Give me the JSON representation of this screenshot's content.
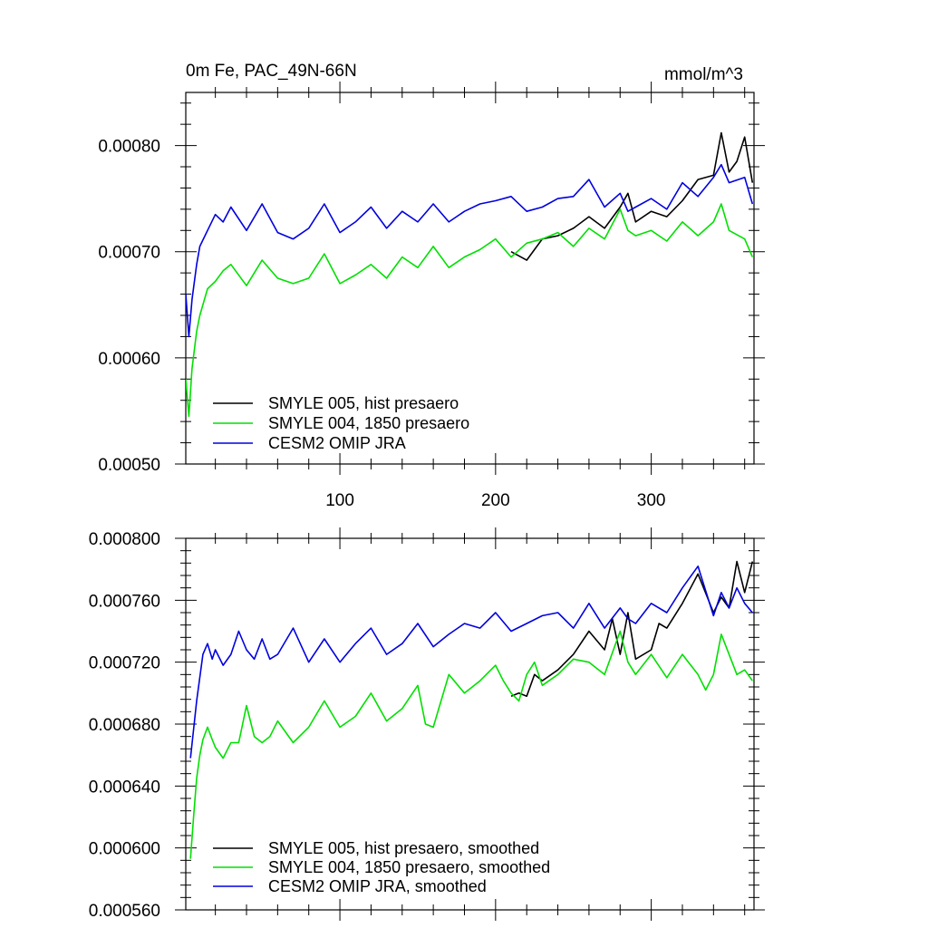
{
  "chart_data": [
    {
      "type": "line",
      "title": "0m Fe, PAC_49N-66N",
      "units": "mmol/m^3",
      "xlim": [
        1,
        366
      ],
      "ylim": [
        0.0005,
        0.00085
      ],
      "xticks": [
        100,
        200,
        300
      ],
      "xtick_labels": [
        "100",
        "200",
        "300"
      ],
      "yticks": [
        0.0005,
        0.0006,
        0.0007,
        0.0008
      ],
      "ytick_labels": [
        "0.00050",
        "0.00060",
        "0.00070",
        "0.00080"
      ],
      "legend": [
        "SMYLE 005, hist presaero",
        "SMYLE 004, 1850 presaero",
        "CESM2 OMIP JRA"
      ],
      "series": [
        {
          "name": "SMYLE 005, hist presaero",
          "color": "#000000",
          "x": [
            210,
            220,
            225,
            230,
            240,
            250,
            260,
            270,
            280,
            285,
            290,
            300,
            310,
            320,
            330,
            340,
            345,
            350,
            355,
            360,
            365
          ],
          "values": [
            0.0007,
            0.000692,
            0.000702,
            0.000712,
            0.000715,
            0.000722,
            0.000733,
            0.000722,
            0.000742,
            0.000755,
            0.000728,
            0.000738,
            0.000733,
            0.000748,
            0.000768,
            0.000772,
            0.000812,
            0.000775,
            0.000785,
            0.000808,
            0.000765
          ]
        },
        {
          "name": "SMYLE 004, 1850 presaero",
          "color": "#00e000",
          "x": [
            1,
            3,
            5,
            8,
            10,
            15,
            20,
            25,
            30,
            40,
            50,
            60,
            70,
            80,
            90,
            100,
            110,
            120,
            130,
            140,
            150,
            160,
            170,
            180,
            190,
            200,
            210,
            220,
            230,
            240,
            250,
            260,
            270,
            280,
            285,
            290,
            300,
            310,
            320,
            330,
            340,
            345,
            350,
            360,
            365
          ],
          "values": [
            0.00058,
            0.000545,
            0.00059,
            0.000625,
            0.00064,
            0.000665,
            0.000672,
            0.000682,
            0.000688,
            0.000668,
            0.000692,
            0.000675,
            0.00067,
            0.000675,
            0.000698,
            0.00067,
            0.000678,
            0.000688,
            0.000675,
            0.000695,
            0.000685,
            0.000705,
            0.000685,
            0.000695,
            0.000702,
            0.000712,
            0.000695,
            0.000708,
            0.000712,
            0.000718,
            0.000705,
            0.000722,
            0.000712,
            0.00074,
            0.00072,
            0.000715,
            0.00072,
            0.00071,
            0.000728,
            0.000715,
            0.000728,
            0.000745,
            0.00072,
            0.000712,
            0.000695
          ]
        },
        {
          "name": "CESM2 OMIP JRA",
          "color": "#0000e0",
          "x": [
            1,
            3,
            5,
            8,
            10,
            15,
            20,
            25,
            30,
            40,
            50,
            60,
            70,
            80,
            90,
            100,
            110,
            120,
            130,
            140,
            150,
            160,
            170,
            180,
            190,
            200,
            210,
            220,
            230,
            240,
            250,
            260,
            270,
            280,
            285,
            290,
            300,
            310,
            320,
            330,
            340,
            345,
            350,
            360,
            365
          ],
          "values": [
            0.00066,
            0.00062,
            0.000655,
            0.000688,
            0.000705,
            0.00072,
            0.000735,
            0.000728,
            0.000742,
            0.00072,
            0.000745,
            0.000718,
            0.000712,
            0.000722,
            0.000745,
            0.000718,
            0.000728,
            0.000742,
            0.000722,
            0.000738,
            0.000728,
            0.000745,
            0.000728,
            0.000738,
            0.000745,
            0.000748,
            0.000752,
            0.000738,
            0.000742,
            0.00075,
            0.000752,
            0.000768,
            0.000742,
            0.000755,
            0.000738,
            0.000742,
            0.00075,
            0.00074,
            0.000765,
            0.000752,
            0.00077,
            0.000782,
            0.000765,
            0.00077,
            0.000745
          ]
        }
      ]
    },
    {
      "type": "line",
      "title": "",
      "xlim": [
        1,
        366
      ],
      "ylim": [
        0.00056,
        0.0008
      ],
      "xticks": [
        100,
        200,
        300
      ],
      "yticks": [
        0.00056,
        0.0006,
        0.00064,
        0.00068,
        0.00072,
        0.00076,
        0.0008
      ],
      "ytick_labels": [
        "0.000560",
        "0.000600",
        "0.000640",
        "0.000680",
        "0.000720",
        "0.000760",
        "0.000800"
      ],
      "legend": [
        "SMYLE 005, hist presaero, smoothed",
        "SMYLE 004, 1850 presaero, smoothed",
        "CESM2 OMIP JRA, smoothed"
      ],
      "series": [
        {
          "name": "SMYLE 005, hist presaero, smoothed",
          "color": "#000000",
          "x": [
            210,
            215,
            220,
            225,
            230,
            240,
            250,
            260,
            270,
            275,
            280,
            285,
            290,
            300,
            305,
            310,
            320,
            330,
            340,
            345,
            350,
            355,
            360,
            365
          ],
          "values": [
            0.000698,
            0.0007,
            0.000698,
            0.000712,
            0.000708,
            0.000715,
            0.000725,
            0.00074,
            0.000728,
            0.000748,
            0.000725,
            0.000752,
            0.000722,
            0.000728,
            0.000745,
            0.000742,
            0.000758,
            0.000777,
            0.000752,
            0.000762,
            0.000755,
            0.000785,
            0.000765,
            0.000785
          ]
        },
        {
          "name": "SMYLE 004, 1850 presaero, smoothed",
          "color": "#00e000",
          "x": [
            4,
            6,
            8,
            10,
            12,
            15,
            18,
            20,
            25,
            30,
            35,
            40,
            45,
            50,
            55,
            60,
            70,
            80,
            90,
            100,
            110,
            120,
            130,
            140,
            150,
            155,
            160,
            170,
            180,
            190,
            200,
            205,
            210,
            215,
            220,
            225,
            230,
            240,
            250,
            260,
            270,
            280,
            285,
            290,
            300,
            310,
            320,
            330,
            335,
            340,
            345,
            350,
            355,
            360,
            365
          ],
          "values": [
            0.000593,
            0.00062,
            0.000645,
            0.00066,
            0.00067,
            0.000678,
            0.00067,
            0.000665,
            0.000658,
            0.000668,
            0.000668,
            0.000692,
            0.000672,
            0.000668,
            0.000672,
            0.000682,
            0.000668,
            0.000678,
            0.000695,
            0.000678,
            0.000685,
            0.0007,
            0.000682,
            0.00069,
            0.000705,
            0.00068,
            0.000678,
            0.000712,
            0.0007,
            0.000708,
            0.000718,
            0.000708,
            0.0007,
            0.000695,
            0.000712,
            0.00072,
            0.000705,
            0.000712,
            0.000722,
            0.00072,
            0.000712,
            0.00074,
            0.00072,
            0.000712,
            0.000725,
            0.00071,
            0.000725,
            0.000712,
            0.000702,
            0.000712,
            0.000738,
            0.000725,
            0.000712,
            0.000715,
            0.000708
          ]
        },
        {
          "name": "CESM2 OMIP JRA, smoothed",
          "color": "#0000e0",
          "x": [
            4,
            8,
            12,
            15,
            18,
            20,
            25,
            30,
            35,
            40,
            45,
            50,
            55,
            60,
            70,
            80,
            90,
            100,
            110,
            120,
            130,
            140,
            150,
            160,
            170,
            180,
            190,
            200,
            210,
            220,
            230,
            240,
            250,
            260,
            270,
            280,
            285,
            290,
            300,
            310,
            320,
            330,
            340,
            345,
            350,
            355,
            360,
            365
          ],
          "values": [
            0.000658,
            0.000695,
            0.000725,
            0.000732,
            0.000722,
            0.000728,
            0.000718,
            0.000725,
            0.00074,
            0.000728,
            0.000722,
            0.000735,
            0.000722,
            0.000725,
            0.000742,
            0.00072,
            0.000735,
            0.00072,
            0.000732,
            0.000742,
            0.000725,
            0.000732,
            0.000745,
            0.00073,
            0.000738,
            0.000745,
            0.000742,
            0.000752,
            0.00074,
            0.000745,
            0.00075,
            0.000752,
            0.000742,
            0.000758,
            0.000742,
            0.000755,
            0.000748,
            0.000745,
            0.000758,
            0.000752,
            0.000768,
            0.000782,
            0.00075,
            0.000765,
            0.000755,
            0.000768,
            0.000758,
            0.000752
          ]
        }
      ]
    }
  ]
}
